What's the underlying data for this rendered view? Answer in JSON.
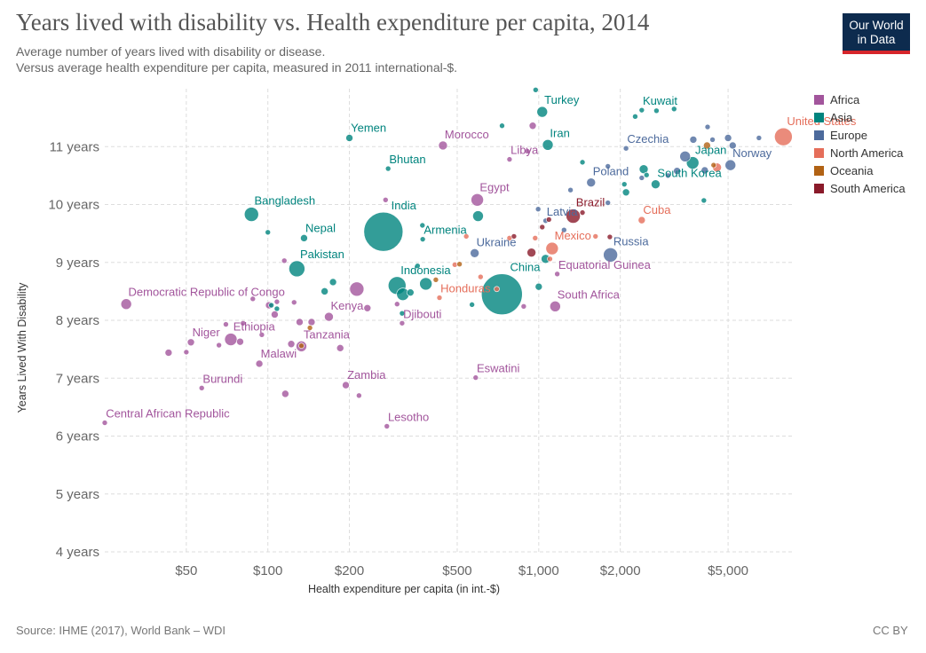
{
  "header": {
    "title": "Years lived with disability vs. Health expenditure per capita, 2014",
    "subtitle_1": "Average number of years lived with disability or disease.",
    "subtitle_2": "Versus average health expenditure per capita, measured in 2011 international-$.",
    "logo_line1": "Our World",
    "logo_line2": "in Data"
  },
  "footer": {
    "source": "Source: IHME (2017), World Bank – WDI",
    "license": "CC BY"
  },
  "colors": {
    "Africa": "#a2559c",
    "Asia": "#00847e",
    "Europe": "#4c6a9c",
    "North America": "#e56e5a",
    "Oceania": "#b16214",
    "South America": "#8a1a2a",
    "grid": "#dddddd"
  },
  "chart_data": {
    "type": "scatter",
    "title": "Years lived with disability vs. Health expenditure per capita, 2014",
    "xlabel": "Health expenditure per capita (in int.-$)",
    "ylabel": "Years Lived With Disability",
    "x_scale": "log",
    "xlim": [
      25,
      8800
    ],
    "ylim": [
      4,
      12
    ],
    "x_ticks": [
      50,
      100,
      200,
      500,
      1000,
      2000,
      5000
    ],
    "x_tick_labels": [
      "$50",
      "$100",
      "$200",
      "$500",
      "$1,000",
      "$2,000",
      "$5,000"
    ],
    "y_ticks": [
      4,
      5,
      6,
      7,
      8,
      9,
      10,
      11
    ],
    "y_tick_labels": [
      "4 years",
      "5 years",
      "6 years",
      "7 years",
      "8 years",
      "9 years",
      "10 years",
      "11 years"
    ],
    "grid": true,
    "legend_position": "right",
    "legend": [
      "Africa",
      "Asia",
      "Europe",
      "North America",
      "Oceania",
      "South America"
    ],
    "points": [
      {
        "name": "Central African Republic",
        "region": "Africa",
        "x": 25,
        "y": 6.23,
        "size": 3,
        "label": true
      },
      {
        "name": "Democratic Republic of Congo",
        "region": "Africa",
        "x": 30,
        "y": 8.28,
        "size": 6,
        "label": true
      },
      {
        "name": "Niger",
        "region": "Africa",
        "x": 52,
        "y": 7.62,
        "size": 4,
        "label": true
      },
      {
        "name": "Ethiopia",
        "region": "Africa",
        "x": 73,
        "y": 7.67,
        "size": 7,
        "label": true
      },
      {
        "name": "Malawi",
        "region": "Africa",
        "x": 93,
        "y": 7.25,
        "size": 4,
        "label": true
      },
      {
        "name": "Burundi",
        "region": "Africa",
        "x": 57,
        "y": 6.83,
        "size": 3,
        "label": true
      },
      {
        "name": "Tanzania",
        "region": "Africa",
        "x": 133,
        "y": 7.55,
        "size": 6,
        "label": true
      },
      {
        "name": "Kenya",
        "region": "Africa",
        "x": 168,
        "y": 8.06,
        "size": 5,
        "label": true
      },
      {
        "name": "Zambia",
        "region": "Africa",
        "x": 194,
        "y": 6.88,
        "size": 4,
        "label": true
      },
      {
        "name": "Lesotho",
        "region": "Africa",
        "x": 275,
        "y": 6.17,
        "size": 3,
        "label": true
      },
      {
        "name": "Djibouti",
        "region": "Africa",
        "x": 313,
        "y": 7.95,
        "size": 3,
        "label": true
      },
      {
        "name": "Morocco",
        "region": "Africa",
        "x": 443,
        "y": 11.02,
        "size": 5,
        "label": true
      },
      {
        "name": "Libya",
        "region": "Africa",
        "x": 780,
        "y": 10.78,
        "size": 3,
        "label": true
      },
      {
        "name": "Egypt",
        "region": "Africa",
        "x": 593,
        "y": 10.08,
        "size": 7,
        "label": true
      },
      {
        "name": "Eswatini",
        "region": "Africa",
        "x": 585,
        "y": 7.01,
        "size": 3,
        "label": true
      },
      {
        "name": "Equatorial Guinea",
        "region": "Africa",
        "x": 1170,
        "y": 8.8,
        "size": 3,
        "label": true
      },
      {
        "name": "South Africa",
        "region": "Africa",
        "x": 1150,
        "y": 8.24,
        "size": 6,
        "label": true
      },
      {
        "name": "Yemen",
        "region": "Asia",
        "x": 200,
        "y": 11.15,
        "size": 4,
        "label": true
      },
      {
        "name": "Bhutan",
        "region": "Asia",
        "x": 278,
        "y": 10.62,
        "size": 3,
        "label": true
      },
      {
        "name": "Bangladesh",
        "region": "Asia",
        "x": 87,
        "y": 9.83,
        "size": 8,
        "label": true
      },
      {
        "name": "Nepal",
        "region": "Asia",
        "x": 136,
        "y": 9.42,
        "size": 4,
        "label": true
      },
      {
        "name": "Pakistan",
        "region": "Asia",
        "x": 128,
        "y": 8.89,
        "size": 9,
        "label": true
      },
      {
        "name": "India",
        "region": "Asia",
        "x": 267,
        "y": 9.53,
        "size": 22,
        "label": true
      },
      {
        "name": "Indonesia",
        "region": "Asia",
        "x": 300,
        "y": 8.6,
        "size": 10,
        "label": true
      },
      {
        "name": "Armenia",
        "region": "Asia",
        "x": 373,
        "y": 9.4,
        "size": 3,
        "label": true
      },
      {
        "name": "China",
        "region": "Asia",
        "x": 731,
        "y": 8.45,
        "size": 23,
        "label": true
      },
      {
        "name": "Turkey",
        "region": "Asia",
        "x": 1030,
        "y": 11.6,
        "size": 6,
        "label": true
      },
      {
        "name": "Iran",
        "region": "Asia",
        "x": 1080,
        "y": 11.03,
        "size": 6,
        "label": true
      },
      {
        "name": "Kuwait",
        "region": "Asia",
        "x": 2400,
        "y": 11.63,
        "size": 3,
        "label": true
      },
      {
        "name": "Japan",
        "region": "Asia",
        "x": 3700,
        "y": 10.72,
        "size": 7,
        "label": true
      },
      {
        "name": "South Korea",
        "region": "Asia",
        "x": 2700,
        "y": 10.35,
        "size": 5,
        "label": true
      },
      {
        "name": "Czechia",
        "region": "Europe",
        "x": 2100,
        "y": 10.97,
        "size": 3,
        "label": true
      },
      {
        "name": "Poland",
        "region": "Europe",
        "x": 1560,
        "y": 10.38,
        "size": 5,
        "label": true
      },
      {
        "name": "Latvia",
        "region": "Europe",
        "x": 1060,
        "y": 9.72,
        "size": 3,
        "label": true
      },
      {
        "name": "Ukraine",
        "region": "Europe",
        "x": 580,
        "y": 9.16,
        "size": 5,
        "label": true
      },
      {
        "name": "Russia",
        "region": "Europe",
        "x": 1840,
        "y": 9.13,
        "size": 8,
        "label": true
      },
      {
        "name": "Norway",
        "region": "Europe",
        "x": 5100,
        "y": 10.68,
        "size": 6,
        "label": true
      },
      {
        "name": "United States",
        "region": "North America",
        "x": 8000,
        "y": 11.17,
        "size": 10,
        "label": true
      },
      {
        "name": "Cuba",
        "region": "North America",
        "x": 2400,
        "y": 9.73,
        "size": 4,
        "label": true
      },
      {
        "name": "Mexico",
        "region": "North America",
        "x": 1120,
        "y": 9.24,
        "size": 7,
        "label": true
      },
      {
        "name": "Honduras",
        "region": "North America",
        "x": 430,
        "y": 8.39,
        "size": 3,
        "label": true
      },
      {
        "name": "Brazil",
        "region": "South America",
        "x": 1340,
        "y": 9.8,
        "size": 8,
        "label": true
      },
      {
        "name": "",
        "region": "Africa",
        "x": 43,
        "y": 7.44,
        "size": 4
      },
      {
        "name": "",
        "region": "Africa",
        "x": 50,
        "y": 7.45,
        "size": 3
      },
      {
        "name": "",
        "region": "Africa",
        "x": 66,
        "y": 7.57,
        "size": 3
      },
      {
        "name": "",
        "region": "Africa",
        "x": 70,
        "y": 7.93,
        "size": 3
      },
      {
        "name": "",
        "region": "Africa",
        "x": 79,
        "y": 7.63,
        "size": 4
      },
      {
        "name": "",
        "region": "Africa",
        "x": 81,
        "y": 7.95,
        "size": 3
      },
      {
        "name": "",
        "region": "Africa",
        "x": 88,
        "y": 8.37,
        "size": 3
      },
      {
        "name": "",
        "region": "Africa",
        "x": 95,
        "y": 7.75,
        "size": 3
      },
      {
        "name": "",
        "region": "Africa",
        "x": 101,
        "y": 8.26,
        "size": 4
      },
      {
        "name": "",
        "region": "Africa",
        "x": 106,
        "y": 8.1,
        "size": 4
      },
      {
        "name": "",
        "region": "Africa",
        "x": 108,
        "y": 8.32,
        "size": 3
      },
      {
        "name": "",
        "region": "Africa",
        "x": 115,
        "y": 9.03,
        "size": 3
      },
      {
        "name": "",
        "region": "Africa",
        "x": 116,
        "y": 6.73,
        "size": 4
      },
      {
        "name": "",
        "region": "Africa",
        "x": 122,
        "y": 7.59,
        "size": 4
      },
      {
        "name": "",
        "region": "Africa",
        "x": 125,
        "y": 8.31,
        "size": 3
      },
      {
        "name": "",
        "region": "Africa",
        "x": 131,
        "y": 7.97,
        "size": 4
      },
      {
        "name": "",
        "region": "Africa",
        "x": 145,
        "y": 7.97,
        "size": 4
      },
      {
        "name": "",
        "region": "Africa",
        "x": 185,
        "y": 7.52,
        "size": 4
      },
      {
        "name": "",
        "region": "Africa",
        "x": 213,
        "y": 8.54,
        "size": 8
      },
      {
        "name": "",
        "region": "Africa",
        "x": 217,
        "y": 6.7,
        "size": 3
      },
      {
        "name": "",
        "region": "Africa",
        "x": 233,
        "y": 8.21,
        "size": 4
      },
      {
        "name": "",
        "region": "Africa",
        "x": 272,
        "y": 10.08,
        "size": 3
      },
      {
        "name": "",
        "region": "Africa",
        "x": 300,
        "y": 8.28,
        "size": 3
      },
      {
        "name": "",
        "region": "Africa",
        "x": 908,
        "y": 10.92,
        "size": 3
      },
      {
        "name": "",
        "region": "Africa",
        "x": 950,
        "y": 11.36,
        "size": 4
      },
      {
        "name": "",
        "region": "Africa",
        "x": 880,
        "y": 8.24,
        "size": 3
      },
      {
        "name": "",
        "region": "Asia",
        "x": 100,
        "y": 9.52,
        "size": 3
      },
      {
        "name": "",
        "region": "Asia",
        "x": 103,
        "y": 8.26,
        "size": 3
      },
      {
        "name": "",
        "region": "Asia",
        "x": 108,
        "y": 8.2,
        "size": 3
      },
      {
        "name": "",
        "region": "Asia",
        "x": 162,
        "y": 8.5,
        "size": 4
      },
      {
        "name": "",
        "region": "Asia",
        "x": 174,
        "y": 8.66,
        "size": 4
      },
      {
        "name": "",
        "region": "Asia",
        "x": 313,
        "y": 8.12,
        "size": 3
      },
      {
        "name": "",
        "region": "Asia",
        "x": 315,
        "y": 8.45,
        "size": 7
      },
      {
        "name": "",
        "region": "Asia",
        "x": 336,
        "y": 8.48,
        "size": 4
      },
      {
        "name": "",
        "region": "Asia",
        "x": 372,
        "y": 9.64,
        "size": 3
      },
      {
        "name": "",
        "region": "Asia",
        "x": 357,
        "y": 8.94,
        "size": 3
      },
      {
        "name": "",
        "region": "Asia",
        "x": 383,
        "y": 8.63,
        "size": 7
      },
      {
        "name": "",
        "region": "Asia",
        "x": 567,
        "y": 8.27,
        "size": 3
      },
      {
        "name": "",
        "region": "Asia",
        "x": 597,
        "y": 9.8,
        "size": 6
      },
      {
        "name": "",
        "region": "Asia",
        "x": 732,
        "y": 11.36,
        "size": 3
      },
      {
        "name": "",
        "region": "Asia",
        "x": 974,
        "y": 11.98,
        "size": 3
      },
      {
        "name": "",
        "region": "Asia",
        "x": 1000,
        "y": 8.58,
        "size": 4
      },
      {
        "name": "",
        "region": "Asia",
        "x": 1060,
        "y": 9.06,
        "size": 5
      },
      {
        "name": "",
        "region": "Asia",
        "x": 1450,
        "y": 10.73,
        "size": 3
      },
      {
        "name": "",
        "region": "Asia",
        "x": 2070,
        "y": 10.35,
        "size": 3
      },
      {
        "name": "",
        "region": "Asia",
        "x": 2100,
        "y": 10.21,
        "size": 4
      },
      {
        "name": "",
        "region": "Asia",
        "x": 2270,
        "y": 11.52,
        "size": 3
      },
      {
        "name": "",
        "region": "Asia",
        "x": 2440,
        "y": 10.61,
        "size": 5
      },
      {
        "name": "",
        "region": "Asia",
        "x": 2500,
        "y": 10.51,
        "size": 3
      },
      {
        "name": "",
        "region": "Asia",
        "x": 2720,
        "y": 11.62,
        "size": 3
      },
      {
        "name": "",
        "region": "Asia",
        "x": 3160,
        "y": 11.65,
        "size": 3
      },
      {
        "name": "",
        "region": "Asia",
        "x": 4070,
        "y": 10.07,
        "size": 3
      },
      {
        "name": "",
        "region": "Europe",
        "x": 995,
        "y": 9.92,
        "size": 3
      },
      {
        "name": "",
        "region": "Europe",
        "x": 1310,
        "y": 10.25,
        "size": 3
      },
      {
        "name": "",
        "region": "Europe",
        "x": 1240,
        "y": 9.56,
        "size": 3
      },
      {
        "name": "",
        "region": "Europe",
        "x": 1800,
        "y": 10.66,
        "size": 3
      },
      {
        "name": "",
        "region": "Europe",
        "x": 1800,
        "y": 10.03,
        "size": 3
      },
      {
        "name": "",
        "region": "Europe",
        "x": 2400,
        "y": 10.46,
        "size": 3
      },
      {
        "name": "",
        "region": "Europe",
        "x": 3000,
        "y": 10.5,
        "size": 3
      },
      {
        "name": "",
        "region": "Europe",
        "x": 3240,
        "y": 10.58,
        "size": 4
      },
      {
        "name": "",
        "region": "Europe",
        "x": 3470,
        "y": 10.83,
        "size": 6
      },
      {
        "name": "",
        "region": "Europe",
        "x": 3720,
        "y": 11.12,
        "size": 4
      },
      {
        "name": "",
        "region": "Europe",
        "x": 4100,
        "y": 10.59,
        "size": 4
      },
      {
        "name": "",
        "region": "Europe",
        "x": 4200,
        "y": 11.34,
        "size": 3
      },
      {
        "name": "",
        "region": "Europe",
        "x": 4380,
        "y": 11.12,
        "size": 3
      },
      {
        "name": "",
        "region": "Europe",
        "x": 5000,
        "y": 11.15,
        "size": 4
      },
      {
        "name": "",
        "region": "Europe",
        "x": 5200,
        "y": 11.02,
        "size": 4
      },
      {
        "name": "",
        "region": "Europe",
        "x": 6500,
        "y": 11.15,
        "size": 3
      },
      {
        "name": "",
        "region": "North America",
        "x": 490,
        "y": 8.96,
        "size": 3
      },
      {
        "name": "",
        "region": "North America",
        "x": 540,
        "y": 9.45,
        "size": 3
      },
      {
        "name": "",
        "region": "North America",
        "x": 610,
        "y": 8.75,
        "size": 3
      },
      {
        "name": "",
        "region": "North America",
        "x": 700,
        "y": 8.54,
        "size": 3
      },
      {
        "name": "",
        "region": "North America",
        "x": 780,
        "y": 9.42,
        "size": 3
      },
      {
        "name": "",
        "region": "North America",
        "x": 970,
        "y": 9.42,
        "size": 3
      },
      {
        "name": "",
        "region": "North America",
        "x": 1100,
        "y": 9.06,
        "size": 3
      },
      {
        "name": "",
        "region": "North America",
        "x": 1620,
        "y": 9.45,
        "size": 3
      },
      {
        "name": "",
        "region": "North America",
        "x": 4550,
        "y": 10.64,
        "size": 5
      },
      {
        "name": "",
        "region": "Oceania",
        "x": 133,
        "y": 7.56,
        "size": 3
      },
      {
        "name": "",
        "region": "Oceania",
        "x": 143,
        "y": 7.87,
        "size": 3
      },
      {
        "name": "",
        "region": "Oceania",
        "x": 417,
        "y": 8.7,
        "size": 3
      },
      {
        "name": "",
        "region": "Oceania",
        "x": 510,
        "y": 8.97,
        "size": 3
      },
      {
        "name": "",
        "region": "Oceania",
        "x": 4180,
        "y": 11.02,
        "size": 4
      },
      {
        "name": "",
        "region": "Oceania",
        "x": 4420,
        "y": 10.68,
        "size": 3
      },
      {
        "name": "",
        "region": "South America",
        "x": 810,
        "y": 9.45,
        "size": 3
      },
      {
        "name": "",
        "region": "South America",
        "x": 940,
        "y": 9.17,
        "size": 5
      },
      {
        "name": "",
        "region": "South America",
        "x": 1030,
        "y": 9.61,
        "size": 3
      },
      {
        "name": "",
        "region": "South America",
        "x": 1090,
        "y": 9.74,
        "size": 3
      },
      {
        "name": "",
        "region": "South America",
        "x": 1450,
        "y": 9.86,
        "size": 3
      },
      {
        "name": "",
        "region": "South America",
        "x": 1830,
        "y": 9.44,
        "size": 3
      }
    ]
  }
}
